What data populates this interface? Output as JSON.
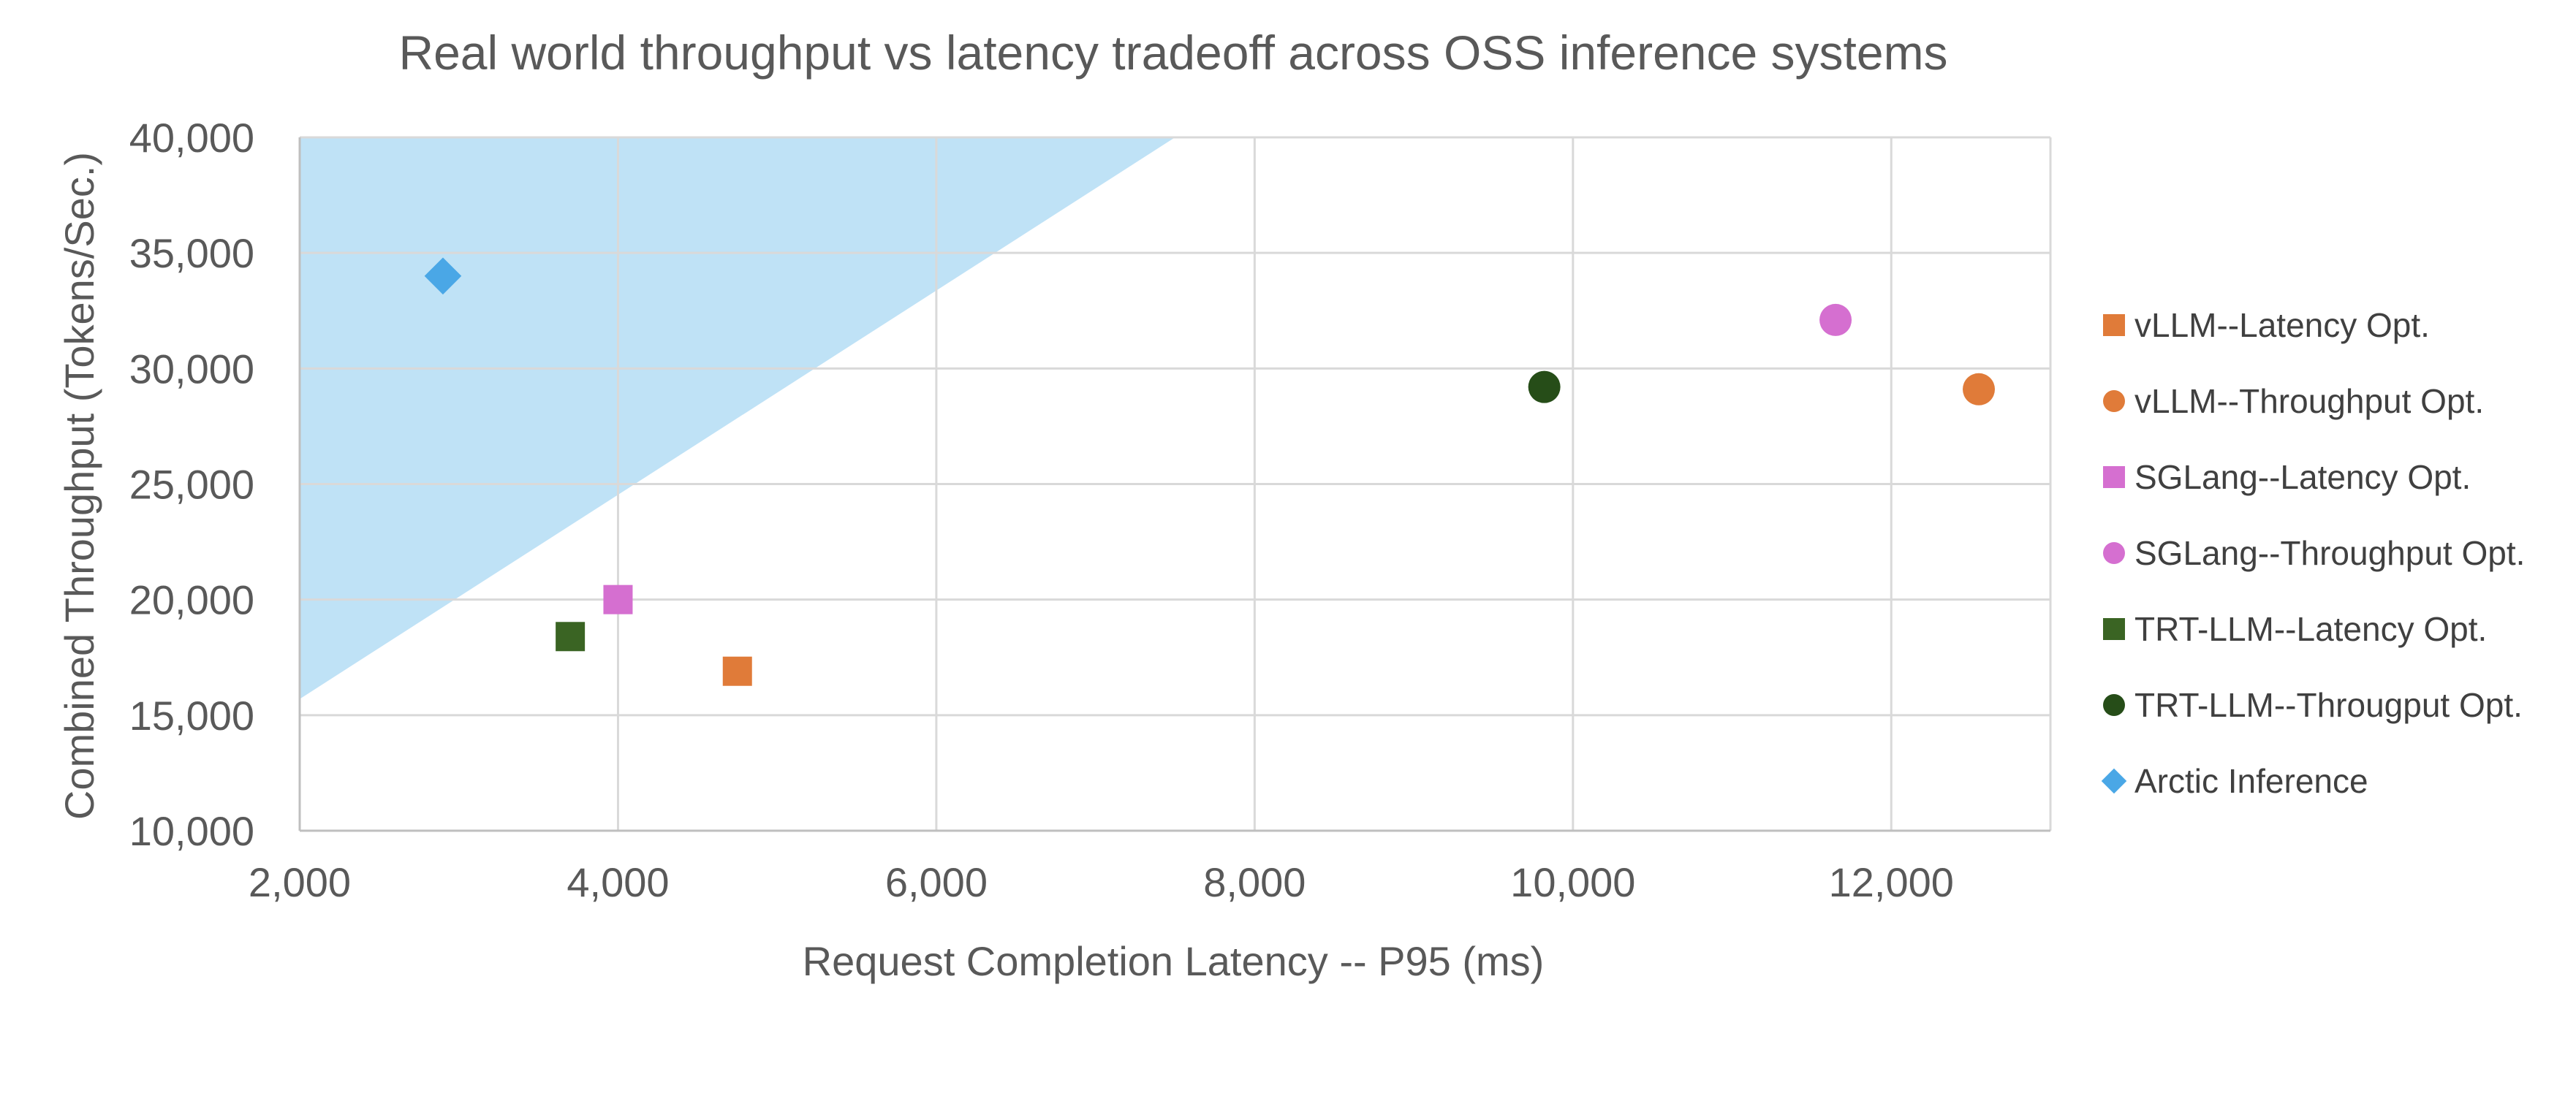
{
  "chart_data": {
    "type": "scatter",
    "title": "Real world throughput vs latency tradeoff across OSS inference systems",
    "xlabel": "Request Completion Latency -- P95 (ms)",
    "ylabel": "Combined Throughput (Tokens/Sec.)",
    "xlim": [
      2000,
      13000
    ],
    "ylim": [
      10000,
      40000
    ],
    "x_ticks": [
      2000,
      4000,
      6000,
      8000,
      10000,
      12000
    ],
    "x_tick_labels": [
      "2,000",
      "4,000",
      "6,000",
      "8,000",
      "10,000",
      "12,000"
    ],
    "y_ticks": [
      10000,
      15000,
      20000,
      25000,
      30000,
      35000,
      40000
    ],
    "y_tick_labels": [
      "10,000",
      "15,000",
      "20,000",
      "25,000",
      "30,000",
      "35,000",
      "40,000"
    ],
    "grid": true,
    "legend_position": "right",
    "shaded_region": {
      "color": "#b4ddf5",
      "points": [
        [
          2000,
          15700
        ],
        [
          7500,
          40000
        ],
        [
          2000,
          40000
        ]
      ]
    },
    "series": [
      {
        "name": "vLLM--Latency Opt.",
        "marker": "square",
        "color": "#e07b39",
        "x": [
          4750
        ],
        "y": [
          16900
        ]
      },
      {
        "name": "vLLM--Throughput Opt.",
        "marker": "circle",
        "color": "#e07b39",
        "x": [
          12550
        ],
        "y": [
          29100
        ]
      },
      {
        "name": "SGLang--Latency Opt.",
        "marker": "square",
        "color": "#d56fd0",
        "x": [
          4000
        ],
        "y": [
          20000
        ]
      },
      {
        "name": "SGLang--Throughput Opt.",
        "marker": "circle",
        "color": "#d56fd0",
        "x": [
          11650
        ],
        "y": [
          32100
        ]
      },
      {
        "name": "TRT-LLM--Latency Opt.",
        "marker": "square",
        "color": "#3a6423",
        "x": [
          3700
        ],
        "y": [
          18400
        ]
      },
      {
        "name": "TRT-LLM--Througput Opt.",
        "marker": "circle",
        "color": "#264d18",
        "x": [
          9820
        ],
        "y": [
          29200
        ]
      },
      {
        "name": "Arctic Inference",
        "marker": "diamond",
        "color": "#4aa7e6",
        "x": [
          2900
        ],
        "y": [
          34000
        ]
      }
    ]
  }
}
